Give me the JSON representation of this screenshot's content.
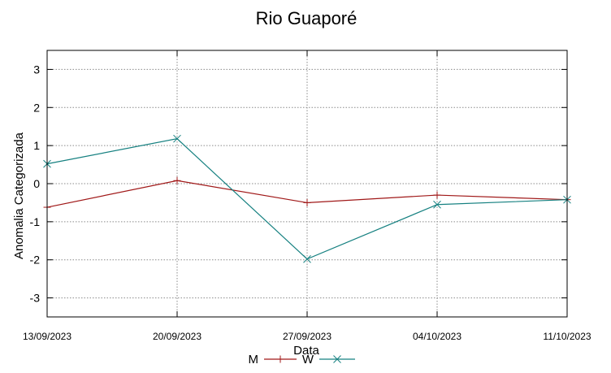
{
  "chart_data": {
    "type": "line",
    "title": "Rio Guaporé",
    "xlabel": "Data",
    "ylabel": "Anomalia Categorizada",
    "categories": [
      "13/09/2023",
      "20/09/2023",
      "27/09/2023",
      "04/10/2023",
      "11/10/2023"
    ],
    "ylim": [
      -3.5,
      3.5
    ],
    "yticks": [
      3,
      2,
      1,
      0,
      -1,
      -2,
      -3
    ],
    "ytick_labels": [
      "3",
      "2",
      "1",
      "0",
      "-1",
      "-2",
      "-3"
    ],
    "grid": true,
    "legend_position": "bottom-center",
    "series": [
      {
        "name": "M",
        "marker": "+",
        "color": "#a01818",
        "values": [
          -0.62,
          0.08,
          -0.5,
          -0.3,
          -0.42
        ]
      },
      {
        "name": "W",
        "marker": "x",
        "color": "#158080",
        "values": [
          0.52,
          1.18,
          -1.98,
          -0.55,
          -0.42
        ]
      }
    ]
  }
}
